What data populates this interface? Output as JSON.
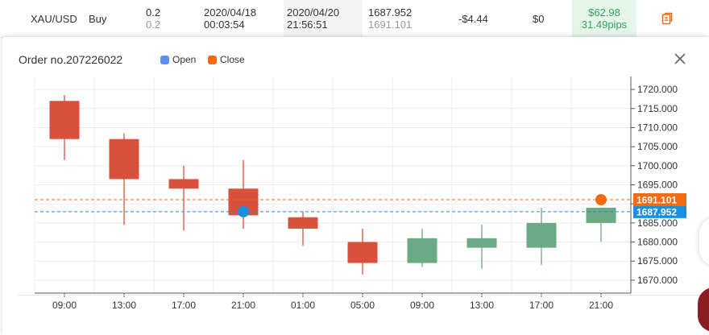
{
  "row": {
    "symbol": "XAU/USD",
    "side": "Buy",
    "volume": "0.2",
    "volume_closed": "0.2",
    "open_date": "2020/04/18",
    "open_time": "00:03:54",
    "close_date": "2020/04/20",
    "close_time": "21:56:51",
    "open_price": "1687.952",
    "close_price": "1691.101",
    "swap": "-$4.44",
    "commission": "$0",
    "profit": "$62.98",
    "profit_pips": "31.49pips",
    "profit_color": "#3aa05a",
    "icon": "report-icon"
  },
  "panel": {
    "title": "Order no.207226022",
    "legend_open": "Open",
    "legend_close": "Close",
    "open_color": "#5b8ff0",
    "close_color": "#f26b10"
  },
  "chart_data": {
    "type": "candlestick",
    "x": [
      "09:00",
      "13:00",
      "17:00",
      "21:00",
      "01:00",
      "05:00",
      "09:00",
      "13:00",
      "17:00",
      "21:00"
    ],
    "open": [
      1717.0,
      1707.0,
      1696.5,
      1694.0,
      1686.5,
      1680.0,
      1674.5,
      1678.5,
      1678.5,
      1685.0
    ],
    "close": [
      1707.0,
      1696.5,
      1694.0,
      1687.0,
      1683.5,
      1674.5,
      1681.0,
      1681.0,
      1685.0,
      1689.0
    ],
    "high": [
      1718.5,
      1708.5,
      1700.0,
      1701.5,
      1688.0,
      1683.5,
      1683.5,
      1684.5,
      1689.0,
      1689.0
    ],
    "low": [
      1701.5,
      1684.5,
      1683.0,
      1683.5,
      1679.0,
      1671.5,
      1673.5,
      1673.0,
      1674.0,
      1680.0
    ],
    "up_color": "#6aaa84",
    "down_color": "#d9503d",
    "yticks": [
      "1670.000",
      "1675.000",
      "1680.000",
      "1685.000",
      "1690.000",
      "1695.000",
      "1700.000",
      "1705.000",
      "1710.000",
      "1715.000",
      "1720.000"
    ],
    "ylim": [
      1666.6,
      1723.4
    ],
    "open_line": {
      "value": 1687.952,
      "label": "1687.952",
      "color": "#1a8fe0"
    },
    "close_line": {
      "value": 1691.101,
      "label": "1691.101",
      "color": "#f26b10"
    },
    "open_marker": {
      "index": 3,
      "value": 1687.952
    },
    "close_marker": {
      "index": 9,
      "value": 1691.101
    },
    "grid": true
  }
}
